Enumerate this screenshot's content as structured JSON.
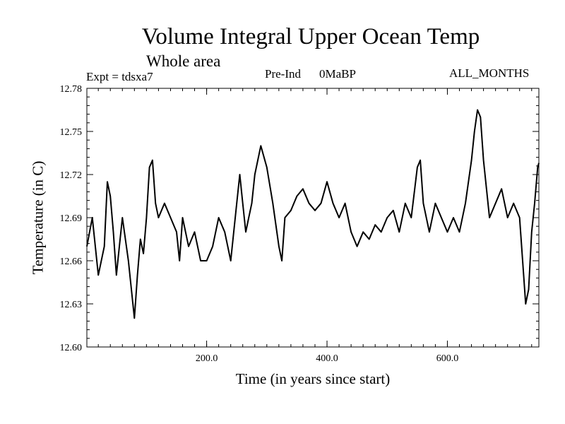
{
  "chart_data": {
    "type": "line",
    "title": "Volume Integral Upper Ocean Temp",
    "subtitle": "Whole area",
    "annotations": {
      "experiment": "Expt = tdsxa7",
      "scenario": "Pre-Ind",
      "period": "0MaBP",
      "months": "ALL_MONTHS"
    },
    "xlabel": "Time (in years since start)",
    "ylabel": "Temperature (in C)",
    "xlim": [
      1,
      752
    ],
    "ylim": [
      12.6,
      12.78
    ],
    "xticks": [
      200,
      400,
      600
    ],
    "xtick_labels": [
      "200.0",
      "400.0",
      "600.0"
    ],
    "yticks": [
      12.6,
      12.63,
      12.66,
      12.69,
      12.72,
      12.75,
      12.78
    ],
    "ytick_labels": [
      "12.60",
      "12.63",
      "12.66",
      "12.69",
      "12.72",
      "12.75",
      "12.78"
    ],
    "series": [
      {
        "name": "Temperature",
        "color": "#000000",
        "x": [
          1,
          10,
          20,
          30,
          35,
          40,
          45,
          50,
          55,
          60,
          70,
          80,
          85,
          90,
          95,
          100,
          105,
          110,
          115,
          120,
          130,
          140,
          150,
          155,
          160,
          170,
          180,
          190,
          200,
          210,
          220,
          230,
          240,
          250,
          255,
          260,
          265,
          270,
          275,
          280,
          290,
          300,
          310,
          320,
          325,
          330,
          340,
          350,
          360,
          370,
          380,
          390,
          400,
          410,
          420,
          430,
          440,
          450,
          460,
          470,
          480,
          490,
          500,
          510,
          520,
          530,
          540,
          550,
          555,
          560,
          570,
          580,
          590,
          600,
          610,
          620,
          630,
          640,
          645,
          650,
          655,
          660,
          670,
          680,
          690,
          700,
          710,
          720,
          725,
          730,
          735,
          740,
          745,
          750,
          752
        ],
        "values": [
          12.67,
          12.69,
          12.65,
          12.67,
          12.715,
          12.705,
          12.68,
          12.65,
          12.67,
          12.69,
          12.66,
          12.62,
          12.65,
          12.675,
          12.665,
          12.69,
          12.725,
          12.73,
          12.7,
          12.69,
          12.7,
          12.69,
          12.68,
          12.66,
          12.69,
          12.67,
          12.68,
          12.66,
          12.66,
          12.67,
          12.69,
          12.68,
          12.66,
          12.7,
          12.72,
          12.7,
          12.68,
          12.69,
          12.7,
          12.72,
          12.74,
          12.725,
          12.7,
          12.67,
          12.66,
          12.69,
          12.695,
          12.705,
          12.71,
          12.7,
          12.695,
          12.7,
          12.715,
          12.7,
          12.69,
          12.7,
          12.68,
          12.67,
          12.68,
          12.675,
          12.685,
          12.68,
          12.69,
          12.695,
          12.68,
          12.7,
          12.69,
          12.725,
          12.73,
          12.7,
          12.68,
          12.7,
          12.69,
          12.68,
          12.69,
          12.68,
          12.7,
          12.73,
          12.75,
          12.765,
          12.76,
          12.73,
          12.69,
          12.7,
          12.71,
          12.69,
          12.7,
          12.69,
          12.66,
          12.63,
          12.64,
          12.68,
          12.7,
          12.725,
          12.728
        ]
      }
    ]
  }
}
